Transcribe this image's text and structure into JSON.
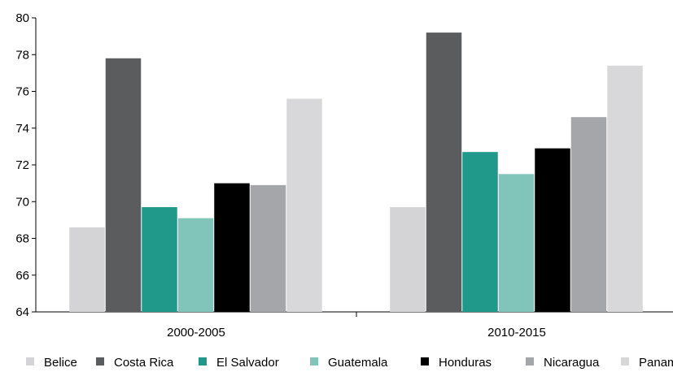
{
  "chart_data": {
    "type": "bar",
    "title": "",
    "xlabel": "",
    "ylabel": "",
    "categories": [
      "2000-2005",
      "2010-2015"
    ],
    "ylim": [
      64,
      80
    ],
    "yticks": [
      64,
      66,
      68,
      70,
      72,
      74,
      76,
      78,
      80
    ],
    "grid": false,
    "legend_position": "bottom",
    "series": [
      {
        "name": "Belice",
        "color": "#d4d4d6",
        "values": [
          68.6,
          69.7
        ]
      },
      {
        "name": "Costa Rica",
        "color": "#5b5c5e",
        "values": [
          77.8,
          79.2
        ]
      },
      {
        "name": "El Salvador",
        "color": "#21998a",
        "values": [
          69.7,
          72.7
        ]
      },
      {
        "name": "Guatemala",
        "color": "#81c4b9",
        "values": [
          69.1,
          71.5
        ]
      },
      {
        "name": "Honduras",
        "color": "#000000",
        "values": [
          71.0,
          72.9
        ]
      },
      {
        "name": "Nicaragua",
        "color": "#a5a6a9",
        "values": [
          70.9,
          74.6
        ]
      },
      {
        "name": "Panamá",
        "color": "#d8d8da",
        "values": [
          75.6,
          77.4
        ]
      }
    ]
  }
}
